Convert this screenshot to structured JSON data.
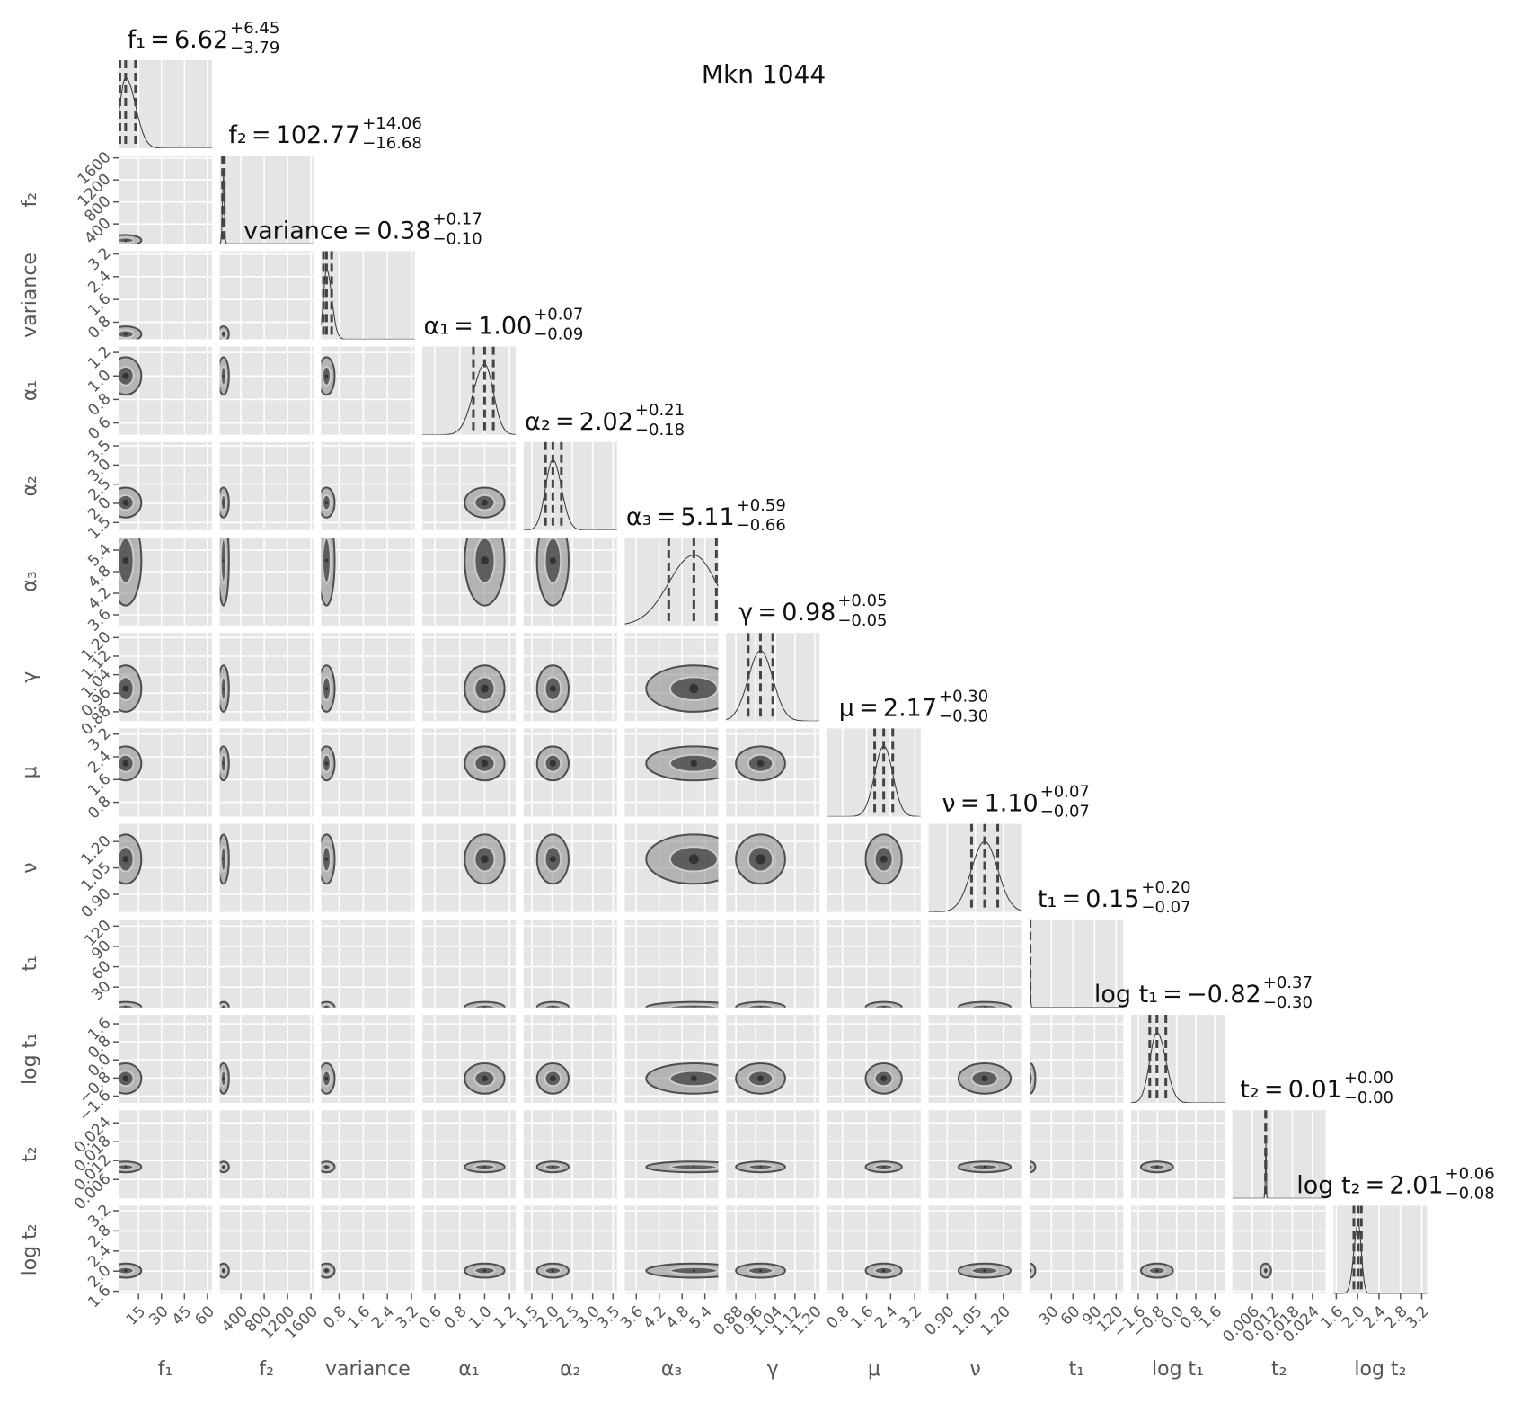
{
  "chart_data": {
    "type": "corner",
    "title": "Mkn 1044",
    "grid": true,
    "color": "#4d4d4d",
    "background": "#e5e5e5",
    "parameters": [
      {
        "label": "f₁",
        "value": 6.62,
        "value_label": "6.62",
        "plus": 6.45,
        "plus_label": "+6.45",
        "minus": 3.79,
        "minus_label": "−3.79",
        "lim": [
          2,
          63
        ],
        "ticks": [
          15,
          30,
          45,
          60
        ]
      },
      {
        "label": "f₂",
        "value": 102.77,
        "value_label": "102.77",
        "plus": 14.06,
        "plus_label": "+14.06",
        "minus": 16.68,
        "minus_label": "−16.68",
        "lim": [
          40,
          1640
        ],
        "ticks": [
          400,
          800,
          1200,
          1600
        ]
      },
      {
        "label": "variance",
        "value": 0.38,
        "value_label": "0.38",
        "plus": 0.17,
        "plus_label": "+0.17",
        "minus": 0.1,
        "minus_label": "−0.10",
        "lim": [
          0.2,
          3.3
        ],
        "ticks": [
          0.8,
          1.6,
          2.4,
          3.2
        ]
      },
      {
        "label": "α₁",
        "value": 1.0,
        "value_label": "1.00",
        "plus": 0.07,
        "plus_label": "+0.07",
        "minus": 0.09,
        "minus_label": "−0.09",
        "lim": [
          0.5,
          1.25
        ],
        "ticks": [
          0.6,
          0.8,
          {
            "value": 1,
            "label": "1.0"
          },
          1.2
        ]
      },
      {
        "label": "α₂",
        "value": 2.02,
        "value_label": "2.02",
        "plus": 0.21,
        "plus_label": "+0.21",
        "minus": 0.18,
        "minus_label": "−0.18",
        "lim": [
          1.3,
          3.6
        ],
        "ticks": [
          1.5,
          {
            "value": 2,
            "label": "2.0"
          },
          2.5,
          {
            "value": 3,
            "label": "3.0"
          },
          3.5
        ]
      },
      {
        "label": "α₃",
        "value": 5.11,
        "value_label": "5.11",
        "plus": 0.59,
        "plus_label": "+0.59",
        "minus": 0.66,
        "minus_label": "−0.66",
        "lim": [
          3.3,
          5.75
        ],
        "ticks": [
          3.6,
          4.2,
          4.8,
          5.4
        ]
      },
      {
        "label": "γ",
        "value": 0.98,
        "value_label": "0.98",
        "plus": 0.05,
        "plus_label": "+0.05",
        "minus": 0.05,
        "minus_label": "−0.05",
        "lim": [
          0.84,
          1.22
        ],
        "ticks": [
          0.88,
          0.96,
          1.04,
          1.12,
          {
            "value": 1.2,
            "label": "1.20"
          }
        ]
      },
      {
        "label": "μ",
        "value": 2.17,
        "value_label": "2.17",
        "plus": 0.3,
        "plus_label": "+0.30",
        "minus": 0.3,
        "minus_label": "−0.30",
        "lim": [
          0.3,
          3.4
        ],
        "ticks": [
          0.8,
          1.6,
          2.4,
          3.2
        ]
      },
      {
        "label": "ν",
        "value": 1.1,
        "value_label": "1.10",
        "plus": 0.07,
        "plus_label": "+0.07",
        "minus": 0.07,
        "minus_label": "−0.07",
        "lim": [
          0.8,
          1.3
        ],
        "ticks": [
          {
            "value": 0.9,
            "label": "0.90"
          },
          1.05,
          {
            "value": 1.2,
            "label": "1.20"
          }
        ]
      },
      {
        "label": "t₁",
        "value": 0.15,
        "value_label": "0.15",
        "plus": 0.2,
        "plus_label": "+0.20",
        "minus": 0.07,
        "minus_label": "−0.07",
        "lim": [
          0,
          130
        ],
        "ticks": [
          30,
          60,
          90,
          120
        ]
      },
      {
        "label": "log t₁",
        "value": -0.82,
        "value_label": "−0.82",
        "plus": 0.37,
        "plus_label": "+0.37",
        "minus": 0.3,
        "minus_label": "−0.30",
        "lim": [
          -1.9,
          2.0
        ],
        "ticks": [
          {
            "value": -1.6,
            "label": "−1.6"
          },
          {
            "value": -0.8,
            "label": "−0.8"
          },
          {
            "value": 0,
            "label": "0.0"
          },
          0.8,
          1.6
        ]
      },
      {
        "label": "t₂",
        "value": 0.01,
        "value_label": "0.01",
        "plus": 0.0,
        "plus_label": "+0.00",
        "minus": 0.0,
        "minus_label": "−0.00",
        "lim": [
          0,
          0.028
        ],
        "ticks": [
          0.006,
          0.012,
          0.018,
          0.024
        ]
      },
      {
        "label": "log t₂",
        "value": 2.01,
        "value_label": "2.01",
        "plus": 0.06,
        "plus_label": "+0.06",
        "minus": 0.08,
        "minus_label": "−0.08",
        "lim": [
          1.55,
          3.3
        ],
        "ticks": [
          1.6,
          {
            "value": 2,
            "label": "2.0"
          },
          2.4,
          2.8,
          3.2
        ]
      }
    ]
  }
}
